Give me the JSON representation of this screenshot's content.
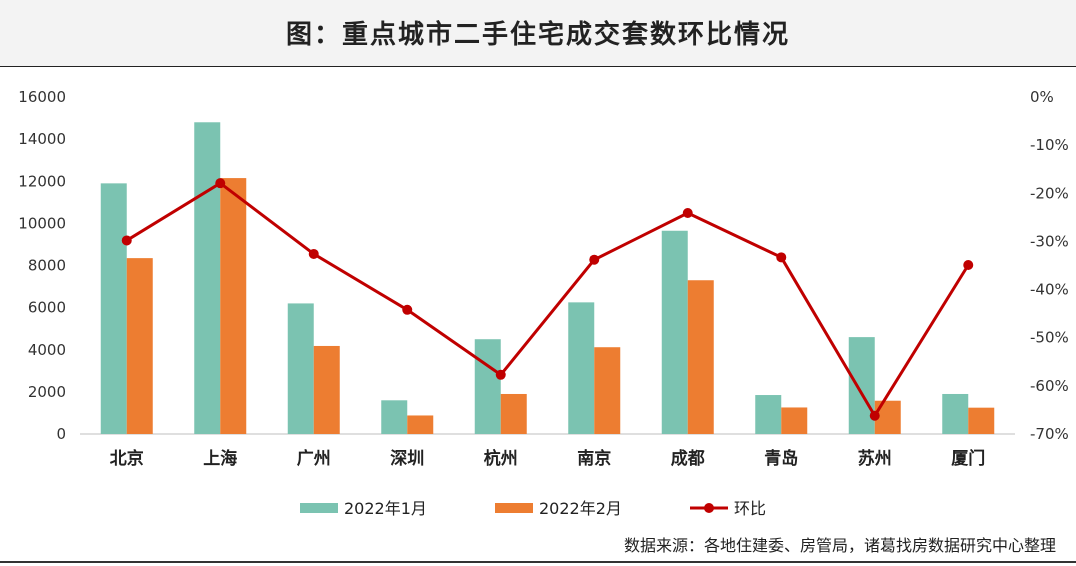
{
  "chart_data": {
    "type": "bar",
    "title": "图：重点城市二手住宅成交套数环比情况",
    "categories": [
      "北京",
      "上海",
      "广州",
      "深圳",
      "杭州",
      "南京",
      "成都",
      "青岛",
      "苏州",
      "厦门"
    ],
    "series": [
      {
        "name": "2022年1月",
        "type": "bar",
        "axis": "left",
        "color": "#7bc3b1",
        "values": [
          11900,
          14800,
          6200,
          1600,
          4500,
          6250,
          9650,
          1850,
          4600,
          1900
        ]
      },
      {
        "name": "2022年2月",
        "type": "bar",
        "axis": "left",
        "color": "#ed7d31",
        "values": [
          8350,
          12150,
          4180,
          880,
          1900,
          4120,
          7300,
          1260,
          1580,
          1250
        ]
      },
      {
        "name": "环比",
        "type": "line",
        "axis": "right",
        "color": "#c00000",
        "values": [
          -29.8,
          -17.9,
          -32.6,
          -44.2,
          -57.7,
          -33.8,
          -24.1,
          -33.3,
          -66.2,
          -34.9
        ]
      }
    ],
    "ylim": [
      0,
      16000
    ],
    "yticks": [
      "16000",
      "14000",
      "12000",
      "10000",
      "8000",
      "6000",
      "4000",
      "2000",
      "0"
    ],
    "y2lim": [
      -70,
      0
    ],
    "y2ticks": [
      "0%",
      "-10%",
      "-20%",
      "-30%",
      "-40%",
      "-50%",
      "-60%",
      "-70%"
    ],
    "legend_position": "bottom",
    "source": "数据来源：各地住建委、房管局，诸葛找房数据研究中心整理"
  }
}
